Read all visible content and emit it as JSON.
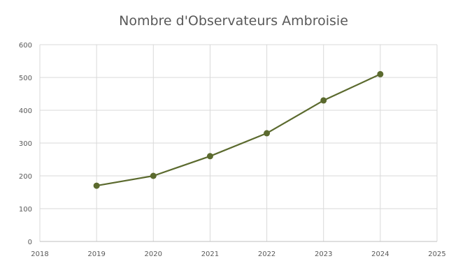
{
  "chart_data": {
    "type": "line",
    "title": "Nombre d'Observateurs Ambroisie",
    "xlabel": "",
    "ylabel": "",
    "x_ticks": [
      2018,
      2019,
      2020,
      2021,
      2022,
      2023,
      2024,
      2025
    ],
    "y_ticks": [
      0,
      100,
      200,
      300,
      400,
      500,
      600
    ],
    "xlim": [
      2018,
      2025
    ],
    "ylim": [
      0,
      600
    ],
    "grid": true,
    "legend": "none",
    "series": [
      {
        "color": "#5b6a2e",
        "x": [
          2019,
          2020,
          2021,
          2022,
          2023,
          2024
        ],
        "y": [
          170,
          200,
          260,
          330,
          430,
          510
        ]
      }
    ]
  }
}
